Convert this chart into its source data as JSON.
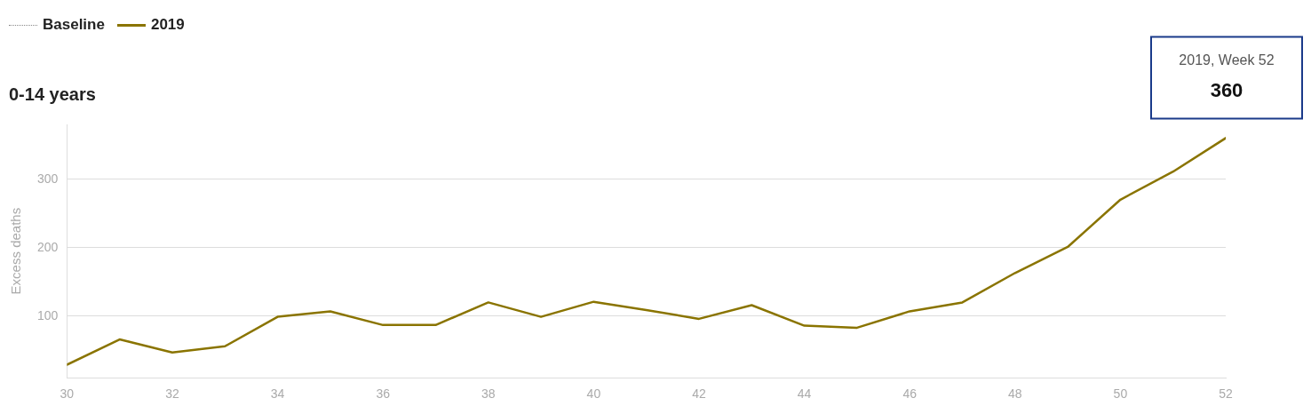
{
  "chart_data": {
    "type": "line",
    "title": "0-14 years",
    "ylabel": "Excess deaths",
    "x": [
      30,
      31,
      32,
      33,
      34,
      35,
      36,
      37,
      38,
      39,
      40,
      41,
      42,
      43,
      44,
      45,
      46,
      47,
      48,
      49,
      50,
      51,
      52
    ],
    "series": [
      {
        "name": "Baseline",
        "color": "#888888",
        "line_style": "dotted",
        "values": [
          null,
          null,
          null,
          null,
          null,
          null,
          null,
          null,
          null,
          null,
          null,
          null,
          null,
          null,
          null,
          null,
          null,
          null,
          null,
          null,
          null,
          null,
          null
        ]
      },
      {
        "name": "2019",
        "color": "#8a7400",
        "line_style": "solid",
        "values": [
          29,
          66,
          47,
          56,
          99,
          107,
          87,
          87,
          120,
          99,
          121,
          109,
          96,
          116,
          86,
          83,
          107,
          120,
          163,
          201,
          270,
          311,
          360
        ],
        "value_labels": [
          null,
          null,
          null,
          null,
          null,
          null,
          null,
          null,
          null,
          null,
          null,
          null,
          null,
          null,
          null,
          null,
          null,
          null,
          null,
          null,
          null,
          null,
          "360"
        ]
      }
    ],
    "annotations": [
      "2019, Week 52"
    ],
    "xlim": [
      30,
      52
    ],
    "xticks": [
      30,
      32,
      34,
      36,
      38,
      40,
      42,
      44,
      46,
      48,
      50,
      52
    ],
    "ylim": [
      10,
      380
    ],
    "yticks": [
      100,
      200,
      300
    ],
    "grid": "y",
    "legend": "top left",
    "marker": "none"
  }
}
